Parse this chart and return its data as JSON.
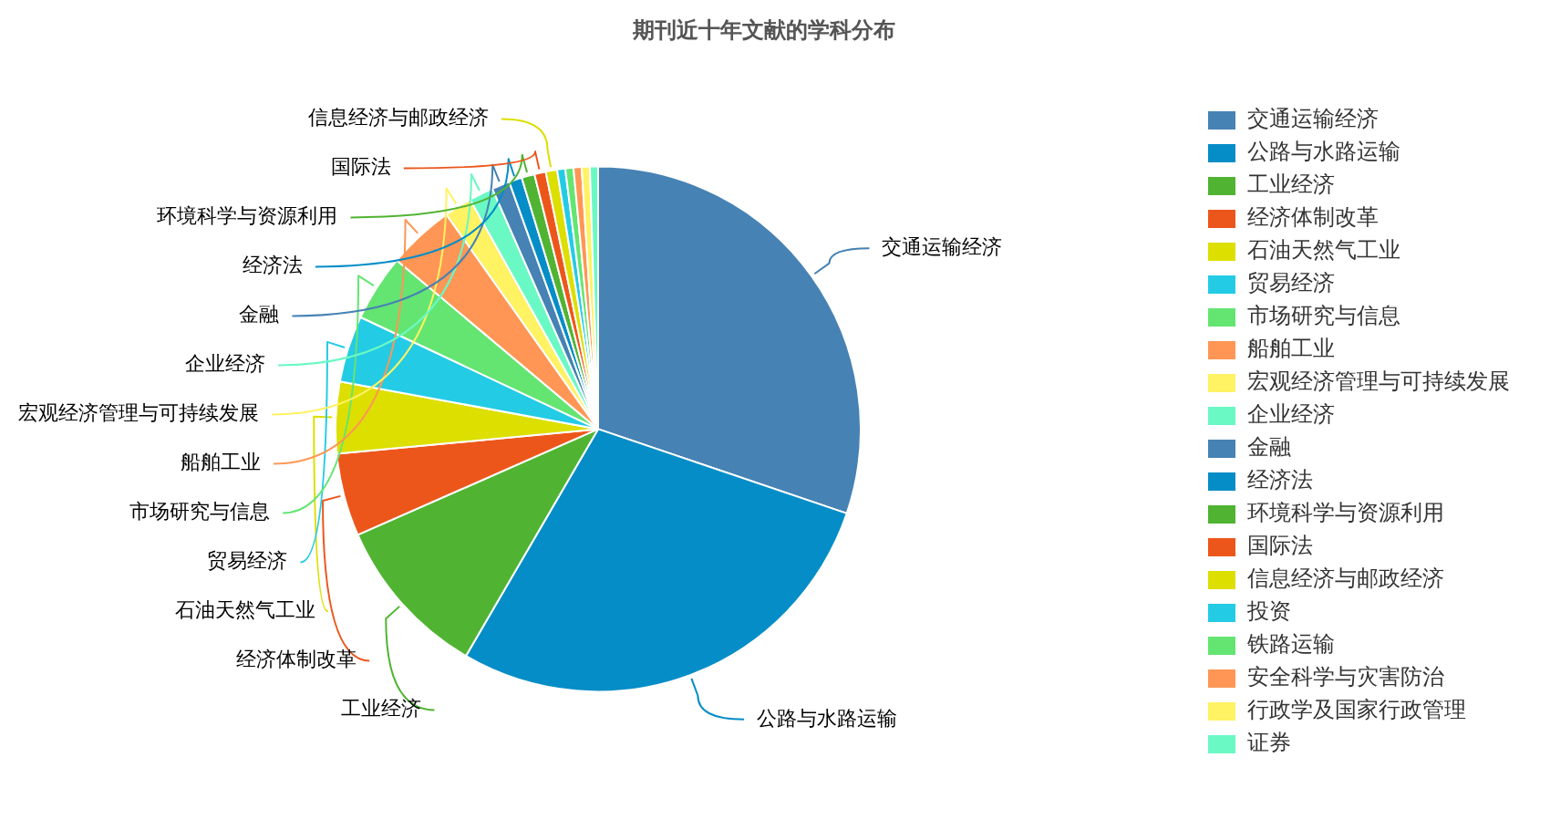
{
  "chart_data": {
    "type": "pie",
    "title": "期刊近十年文献的学科分布",
    "categories": [
      "交通运输经济",
      "公路与水路运输",
      "工业经济",
      "经济体制改革",
      "石油天然气工业",
      "贸易经济",
      "市场研究与信息",
      "船舶工业",
      "宏观经济管理与可持续发展",
      "企业经济",
      "金融",
      "经济法",
      "环境科学与资源利用",
      "国际法",
      "信息经济与邮政经济",
      "投资",
      "铁路运输",
      "安全科学与灾害防治",
      "行政学及国家行政管理",
      "证券"
    ],
    "values": [
      30.2,
      28.2,
      10.0,
      5.1,
      4.4,
      4.1,
      4.1,
      4.1,
      1.7,
      1.5,
      1.1,
      0.8,
      0.8,
      0.7,
      0.7,
      0.5,
      0.5,
      0.5,
      0.5,
      0.5
    ],
    "colors": [
      "#4682b4",
      "#058dc7",
      "#50b432",
      "#ed561b",
      "#dddf00",
      "#24cbe5",
      "#64e572",
      "#ff9655",
      "#fff263",
      "#6af9c4",
      "#4682b4",
      "#058dc7",
      "#50b432",
      "#ed561b",
      "#dddf00",
      "#24cbe5",
      "#64e572",
      "#ff9655",
      "#fff263",
      "#6af9c4"
    ],
    "legend": "right"
  }
}
